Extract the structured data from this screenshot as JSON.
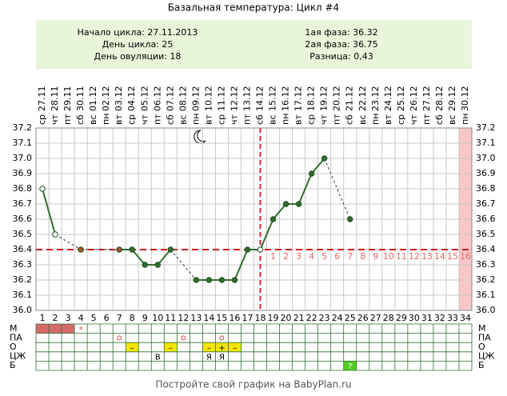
{
  "header": {
    "title": "Базальная температура: Цикл #4",
    "info_left": [
      "Начало цикла: 27.11.2013",
      "День цикла: 25",
      "День овуляции: 18"
    ],
    "info_right": [
      "1ая фаза: 36.32",
      "2ая фаза: 36.75",
      "Разница: 0,43"
    ]
  },
  "chart_data": {
    "type": "line",
    "x": [
      1,
      2,
      3,
      4,
      5,
      6,
      7,
      8,
      9,
      10,
      11,
      12,
      13,
      14,
      15,
      16,
      17,
      18,
      19,
      20,
      21,
      22,
      23,
      24,
      25,
      26,
      27,
      28,
      29,
      30,
      31,
      32,
      33,
      34
    ],
    "weekdays": [
      "ср",
      "чт",
      "пт",
      "сб",
      "вс",
      "пн",
      "вт",
      "ср",
      "чт",
      "пт",
      "сб",
      "вс",
      "пн",
      "вт",
      "ср",
      "чт",
      "пт",
      "сб",
      "вс",
      "пн",
      "вт",
      "ср",
      "чт",
      "пт",
      "сб",
      "вс",
      "пн",
      "вт",
      "ср",
      "чт",
      "пт",
      "сб",
      "вс",
      "пн"
    ],
    "dates": [
      "27.11",
      "28.11",
      "29.11",
      "30.11",
      "01.12",
      "02.12",
      "03.12",
      "04.12",
      "05.12",
      "06.12",
      "07.12",
      "08.12",
      "09.12",
      "10.12",
      "11.12",
      "12.12",
      "13.12",
      "14.12",
      "15.12",
      "16.12",
      "17.12",
      "18.12",
      "19.12",
      "20.12",
      "21.12",
      "22.12",
      "23.12",
      "24.12",
      "25.12",
      "26.12",
      "27.12",
      "28.12",
      "29.12",
      "30.12"
    ],
    "values": [
      36.8,
      36.5,
      null,
      36.4,
      null,
      null,
      36.4,
      36.4,
      36.3,
      36.3,
      36.4,
      null,
      36.2,
      36.2,
      36.2,
      36.2,
      36.4,
      36.4,
      36.6,
      36.7,
      36.7,
      36.9,
      37.0,
      null,
      36.6,
      null,
      null,
      null,
      null,
      null,
      null,
      null,
      null,
      null
    ],
    "color": "#2f6e2f",
    "open_days": [
      1,
      2,
      18
    ],
    "accent_days": [
      4,
      7
    ],
    "accent_color": "#a8522a",
    "xlim": [
      0.5,
      34.5
    ],
    "ylim": [
      36.0,
      37.2
    ],
    "yticks": [
      {
        "value": 36.0,
        "label": "36.0"
      },
      36.1,
      36.2,
      36.3,
      36.4,
      36.5,
      36.6,
      36.7,
      36.8,
      36.9,
      {
        "value": 37.0,
        "label": "37.0"
      },
      37.1,
      37.2
    ],
    "grid": true,
    "coverline": 36.4,
    "ovulation_day": 18,
    "luteal_labels": [
      1,
      2,
      3,
      4,
      5,
      6,
      7,
      8,
      9,
      10,
      11,
      12,
      13,
      14,
      15,
      16
    ],
    "highlight_days": [
      34
    ],
    "symptoms": [
      {
        "label": "М",
        "cells": [
          {
            "day": 1,
            "bg": "#d46a6a"
          },
          {
            "day": 2,
            "bg": "#d46a6a"
          },
          {
            "day": 3,
            "bg": "#d46a6a"
          },
          {
            "day": 4,
            "text": "*",
            "color": "#d04040"
          }
        ]
      },
      {
        "label": "ПА",
        "cells": [
          {
            "day": 7,
            "symbol": "circle",
            "color": "#d04040"
          },
          {
            "day": 12,
            "symbol": "circle",
            "color": "#d04040"
          },
          {
            "day": 15,
            "symbol": "circle",
            "color": "#d04040"
          }
        ]
      },
      {
        "label": "О",
        "cells": [
          {
            "day": 8,
            "text": "–",
            "bg": "#f2e600"
          },
          {
            "day": 11,
            "text": "–",
            "bg": "#f2e600"
          },
          {
            "day": 14,
            "text": "–",
            "bg": "#f2e600"
          },
          {
            "day": 15,
            "text": "+",
            "bg": "#f2e600"
          },
          {
            "day": 16,
            "text": "–",
            "bg": "#f2e600"
          }
        ]
      },
      {
        "label": "ЦЖ",
        "cells": [
          {
            "day": 10,
            "text": "В"
          },
          {
            "day": 14,
            "text": "Я"
          },
          {
            "day": 15,
            "text": "Я"
          }
        ]
      },
      {
        "label": "Б",
        "cells": [
          {
            "day": 25,
            "text": "?",
            "bg": "#55cc22",
            "color": "#ffffff"
          }
        ]
      }
    ]
  },
  "footer": "Постройте свой график на BabyPlan.ru"
}
